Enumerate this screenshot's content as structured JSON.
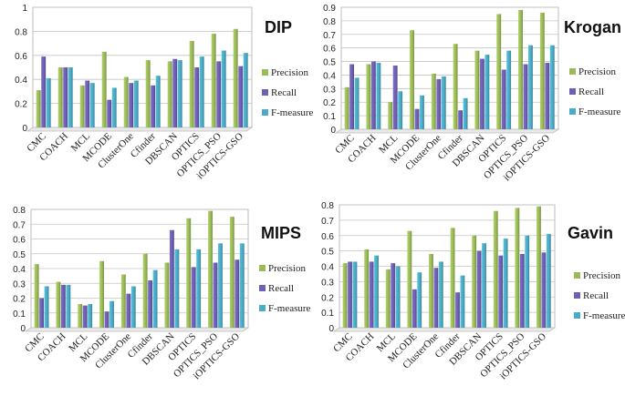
{
  "series_colors": {
    "Precision": "#9BBB59",
    "Recall": "#7060B4",
    "F-measure": "#4BACC6"
  },
  "chart_data": [
    {
      "type": "bar",
      "title": "DIP",
      "categories": [
        "CMC",
        "COACH",
        "MCL",
        "MCODE",
        "ClusterOne",
        "Cfinder",
        "DBSCAN",
        "OPTICS",
        "OPTICS_PSO",
        "iOPTICS-GSO"
      ],
      "ylim": [
        0,
        1
      ],
      "yticks": [
        "0",
        "0.2",
        "0.4",
        "0.6",
        "0.8",
        "1"
      ],
      "tick_values": [
        0,
        0.2,
        0.4,
        0.6,
        0.8,
        1.0
      ],
      "series": [
        {
          "name": "Precision",
          "values": [
            0.31,
            0.5,
            0.35,
            0.63,
            0.42,
            0.56,
            0.55,
            0.72,
            0.78,
            0.82
          ]
        },
        {
          "name": "Recall",
          "values": [
            0.59,
            0.5,
            0.39,
            0.23,
            0.37,
            0.35,
            0.57,
            0.5,
            0.55,
            0.51
          ]
        },
        {
          "name": "F-measure",
          "values": [
            0.41,
            0.5,
            0.37,
            0.33,
            0.39,
            0.43,
            0.56,
            0.59,
            0.64,
            0.62
          ]
        }
      ]
    },
    {
      "type": "bar",
      "title": "Krogan",
      "categories": [
        "CMC",
        "COACH",
        "MCL",
        "MCODE",
        "ClusterOne",
        "Cfinder",
        "DBSCAN",
        "OPTICS",
        "OPTICS_PSO",
        "iOPTICS-GSO"
      ],
      "ylim": [
        0,
        0.9
      ],
      "yticks": [
        "0",
        "0.1",
        "0.2",
        "0.3",
        "0.4",
        "0.5",
        "0.6",
        "0.7",
        "0.8",
        "0.9"
      ],
      "tick_values": [
        0,
        0.1,
        0.2,
        0.3,
        0.4,
        0.5,
        0.6,
        0.7,
        0.8,
        0.9
      ],
      "series": [
        {
          "name": "Precision",
          "values": [
            0.31,
            0.48,
            0.2,
            0.73,
            0.41,
            0.63,
            0.58,
            0.85,
            0.88,
            0.86
          ]
        },
        {
          "name": "Recall",
          "values": [
            0.48,
            0.5,
            0.47,
            0.15,
            0.37,
            0.14,
            0.52,
            0.44,
            0.48,
            0.49
          ]
        },
        {
          "name": "F-measure",
          "values": [
            0.38,
            0.49,
            0.28,
            0.25,
            0.39,
            0.23,
            0.55,
            0.58,
            0.62,
            0.62
          ]
        }
      ]
    },
    {
      "type": "bar",
      "title": "MIPS",
      "categories": [
        "CMC",
        "COACH",
        "MCL",
        "MCODE",
        "ClusterOne",
        "Cfinder",
        "DBSCAN",
        "OPTICS",
        "OPTICS_PSO",
        "iOPTICS-GSO"
      ],
      "ylim": [
        0,
        0.8
      ],
      "yticks": [
        "0",
        "0.1",
        "0.2",
        "0.3",
        "0.4",
        "0.5",
        "0.6",
        "0.7",
        "0.8"
      ],
      "tick_values": [
        0,
        0.1,
        0.2,
        0.3,
        0.4,
        0.5,
        0.6,
        0.7,
        0.8
      ],
      "series": [
        {
          "name": "Precision",
          "values": [
            0.43,
            0.31,
            0.16,
            0.45,
            0.36,
            0.5,
            0.44,
            0.74,
            0.79,
            0.75
          ]
        },
        {
          "name": "Recall",
          "values": [
            0.2,
            0.29,
            0.15,
            0.11,
            0.23,
            0.32,
            0.66,
            0.41,
            0.44,
            0.46
          ]
        },
        {
          "name": "F-measure",
          "values": [
            0.28,
            0.29,
            0.16,
            0.18,
            0.28,
            0.39,
            0.53,
            0.53,
            0.57,
            0.57
          ]
        }
      ]
    },
    {
      "type": "bar",
      "title": "Gavin",
      "categories": [
        "CMC",
        "COACH",
        "MCL",
        "MCODE",
        "ClusterOne",
        "Cfinder",
        "DBSCAN",
        "OPTICS",
        "OPTICS_PSO",
        "iOPTICS-GSO"
      ],
      "ylim": [
        0,
        0.8
      ],
      "yticks": [
        "0",
        "0.1",
        "0.2",
        "0.3",
        "0.4",
        "0.5",
        "0.6",
        "0.7",
        "0.8"
      ],
      "tick_values": [
        0,
        0.1,
        0.2,
        0.3,
        0.4,
        0.5,
        0.6,
        0.7,
        0.8
      ],
      "series": [
        {
          "name": "Precision",
          "values": [
            0.42,
            0.51,
            0.38,
            0.63,
            0.48,
            0.65,
            0.6,
            0.76,
            0.78,
            0.79
          ]
        },
        {
          "name": "Recall",
          "values": [
            0.43,
            0.43,
            0.42,
            0.25,
            0.39,
            0.23,
            0.5,
            0.47,
            0.48,
            0.49
          ]
        },
        {
          "name": "F-measure",
          "values": [
            0.43,
            0.47,
            0.4,
            0.36,
            0.43,
            0.34,
            0.55,
            0.58,
            0.6,
            0.61
          ]
        }
      ]
    }
  ]
}
